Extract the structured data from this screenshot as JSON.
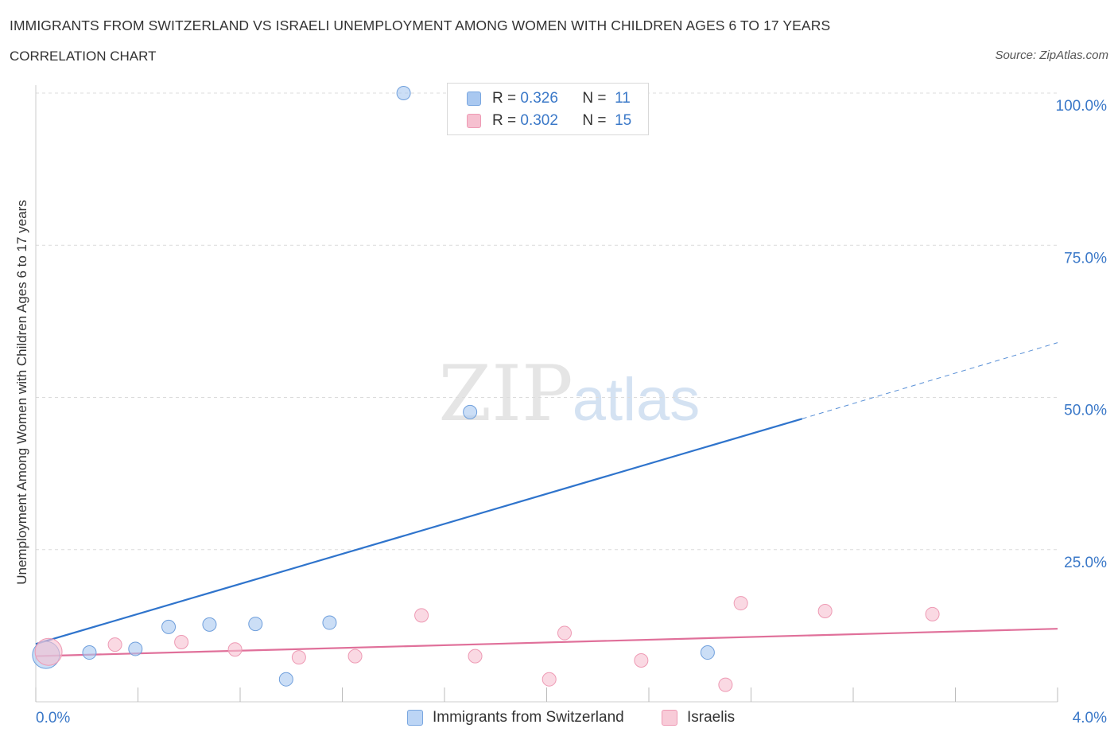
{
  "title": "IMMIGRANTS FROM SWITZERLAND VS ISRAELI UNEMPLOYMENT AMONG WOMEN WITH CHILDREN AGES 6 TO 17 YEARS",
  "subtitle": "CORRELATION CHART",
  "source": "Source: ZipAtlas.com",
  "watermark": {
    "zip": "ZIP",
    "atlas": "atlas"
  },
  "legend": {
    "r_label": "R =",
    "n_label": "N =",
    "series": [
      {
        "r": "0.326",
        "n": "11",
        "color": "#a9c8f0",
        "border": "#7aa7e0"
      },
      {
        "r": "0.302",
        "n": "15",
        "color": "#f6c0d0",
        "border": "#ee9ab4"
      }
    ]
  },
  "chart_data": {
    "type": "scatter",
    "xlabel": "",
    "ylabel": "Unemployment Among Women with Children Ages 6 to 17 years",
    "xlim": [
      0,
      4
    ],
    "ylim": [
      0,
      100
    ],
    "x_tick_labels": [
      "0.0%",
      "4.0%"
    ],
    "y_tick_labels": [
      "100.0%",
      "75.0%",
      "50.0%",
      "25.0%"
    ],
    "y_tick_values": [
      100,
      75,
      50,
      25
    ],
    "grid": "horizontal-dashed",
    "legend_placement": "bottom-center",
    "series": [
      {
        "name": "Immigrants from Switzerland",
        "color": "#a9c8f0",
        "stroke": "#6f9fdc",
        "trend_color": "#2f74cc",
        "points": [
          {
            "x": 0.04,
            "y": 7.7,
            "size": "large"
          },
          {
            "x": 0.21,
            "y": 8.1
          },
          {
            "x": 0.39,
            "y": 8.7
          },
          {
            "x": 0.52,
            "y": 12.3
          },
          {
            "x": 0.68,
            "y": 12.7
          },
          {
            "x": 0.86,
            "y": 12.8
          },
          {
            "x": 0.98,
            "y": 3.7
          },
          {
            "x": 1.15,
            "y": 13.0
          },
          {
            "x": 1.44,
            "y": 100.0
          },
          {
            "x": 1.7,
            "y": 47.6
          },
          {
            "x": 2.63,
            "y": 8.1
          }
        ],
        "trend": {
          "x0": 0.0,
          "y0": 9.5,
          "x1": 3.0,
          "y1": 46.5,
          "dashed_to_x": 4.0,
          "dashed_to_y": 59.0
        }
      },
      {
        "name": "Israelis",
        "color": "#f6c0d0",
        "stroke": "#ee9ab4",
        "trend_color": "#e0709a",
        "points": [
          {
            "x": 0.05,
            "y": 8.2,
            "size": "large"
          },
          {
            "x": 0.31,
            "y": 9.4
          },
          {
            "x": 0.57,
            "y": 9.8
          },
          {
            "x": 0.78,
            "y": 8.6
          },
          {
            "x": 1.03,
            "y": 7.3
          },
          {
            "x": 1.25,
            "y": 7.5
          },
          {
            "x": 1.51,
            "y": 14.2
          },
          {
            "x": 1.72,
            "y": 7.5
          },
          {
            "x": 2.01,
            "y": 3.7
          },
          {
            "x": 2.07,
            "y": 11.3
          },
          {
            "x": 2.37,
            "y": 6.8
          },
          {
            "x": 2.7,
            "y": 2.8
          },
          {
            "x": 2.76,
            "y": 16.2
          },
          {
            "x": 3.09,
            "y": 14.9
          },
          {
            "x": 3.51,
            "y": 14.4
          }
        ],
        "trend": {
          "x0": 0.0,
          "y0": 7.5,
          "x1": 4.0,
          "y1": 12.0
        }
      }
    ]
  }
}
